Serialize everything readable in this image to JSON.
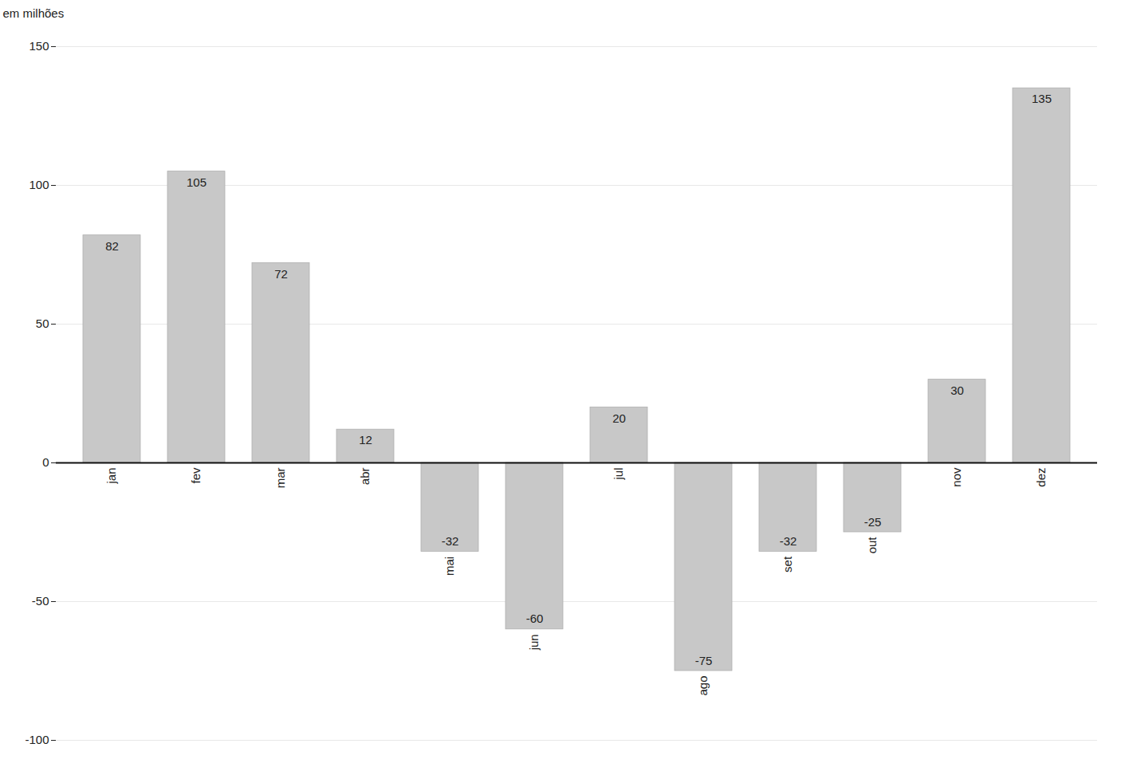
{
  "chart_data": {
    "type": "bar",
    "ylabel": "em milhões",
    "categories": [
      "jan",
      "fev",
      "mar",
      "abr",
      "mai",
      "jun",
      "jul",
      "ago",
      "set",
      "out",
      "nov",
      "dez"
    ],
    "values": [
      82,
      105,
      72,
      12,
      -32,
      -60,
      20,
      -75,
      -32,
      -25,
      30,
      135
    ],
    "color": "#c8c8c8",
    "ylim": [
      -100,
      150
    ],
    "yticks": [
      -100,
      -50,
      0,
      50,
      100,
      150
    ],
    "grid": true,
    "data_labels": true
  }
}
